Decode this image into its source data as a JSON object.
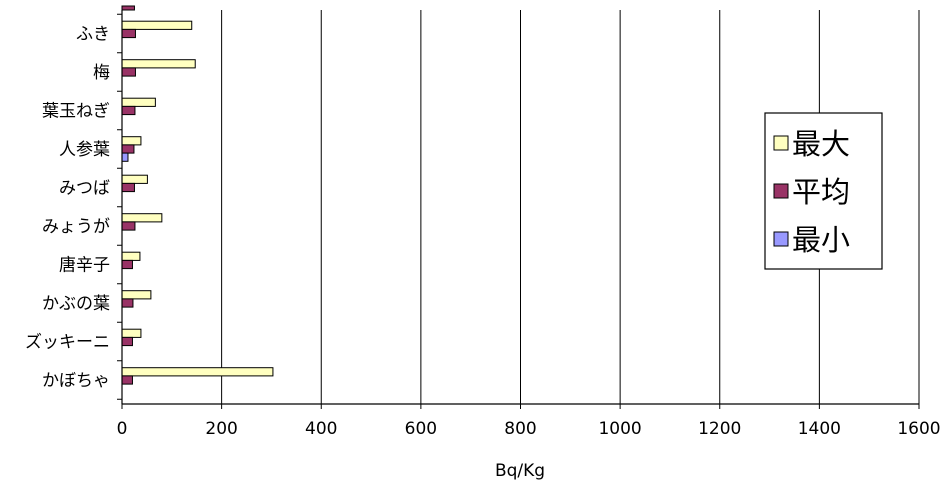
{
  "chart_data": {
    "type": "bar",
    "orientation": "horizontal",
    "categories": [
      "ふき",
      "梅",
      "葉玉ねぎ",
      "人参葉",
      "みつば",
      "みょうが",
      "唐辛子",
      "かぶの葉",
      "ズッキーニ",
      "かぼちゃ"
    ],
    "series": [
      {
        "name": "最大",
        "color": "#ffffc0",
        "values": [
          140,
          147,
          67,
          38,
          51,
          80,
          36,
          58,
          38,
          303
        ]
      },
      {
        "name": "平均",
        "color": "#993366",
        "values": [
          27,
          27,
          26,
          24,
          25,
          26,
          21,
          22,
          21,
          21
        ]
      },
      {
        "name": "最小",
        "color": "#9999ff",
        "values": [
          0,
          0,
          0,
          12,
          0,
          0,
          0,
          0,
          0,
          0
        ]
      }
    ],
    "xlabel": "Bq/Kg",
    "xlim": [
      0,
      1600
    ],
    "xticks": [
      0,
      200,
      400,
      600,
      800,
      1000,
      1200,
      1400,
      1600
    ],
    "grid": "vertical major gridlines",
    "legend": "right",
    "partial_top_row": {
      "series": "最大",
      "value": 25
    }
  }
}
